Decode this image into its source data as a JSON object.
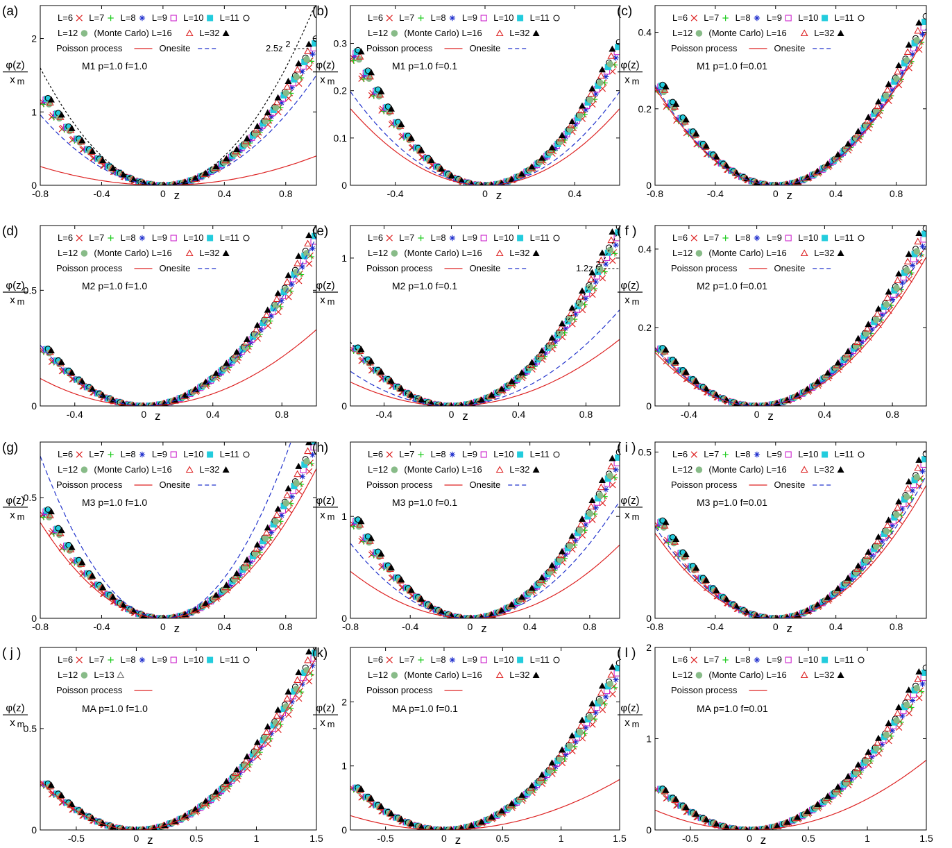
{
  "figure": {
    "ylabel_num": "φ(z)",
    "ylabel_den": "x",
    "ylabel_sub": "m",
    "xlabel": "z",
    "colors": {
      "L6": "#dd2222",
      "L7": "#dd2222",
      "L8": "#22cc22",
      "L9": "#1a2acc",
      "L10": "#cc22cc",
      "L11": "#22ccdd",
      "L12": "#000000",
      "MC": "#88bb88",
      "L16": "#dd2222",
      "L32": "#000000",
      "L13": "#777777",
      "poisson": "#dd2222",
      "onesite": "#2233cc",
      "fit": "#000000"
    }
  },
  "chart_data": [
    {
      "panel": "(a)",
      "type": "scatter",
      "annotation": "M1 p=1.0 f=1.0",
      "legend": [
        "L=6",
        "L=7",
        "L=8",
        "L=9",
        "L=10",
        "L=11",
        "L=12",
        "(Monte Carlo) L=16",
        "L=32",
        "Poisson process",
        "Onesite",
        "2.5z²"
      ],
      "xlim": [
        -0.8,
        1.0
      ],
      "ylim": [
        0,
        2.45
      ],
      "xticks": [
        "-0.8",
        "-0.4",
        "0",
        "0.4",
        "0.8"
      ],
      "yticks": [
        "0",
        "1",
        "2"
      ],
      "data_coef": 1.9,
      "poisson_coef": 0.4,
      "onesite_coef": 1.5,
      "fit_coef": 2.5,
      "fit_label": "2.5z"
    },
    {
      "panel": "(b)",
      "type": "scatter",
      "annotation": "M1 p=1.0 f=0.1",
      "legend": [
        "L=6",
        "L=7",
        "L=8",
        "L=9",
        "L=10",
        "L=11",
        "L=12",
        "(Monte Carlo) L=16",
        "L=32",
        "Poisson process",
        "Onesite"
      ],
      "xlim": [
        -0.6,
        0.6
      ],
      "ylim": [
        0,
        0.38
      ],
      "xticks": [
        "-0.4",
        "0",
        "0.4"
      ],
      "yticks": [
        "0",
        "0.1",
        "0.2",
        "0.3"
      ],
      "data_coef": 0.8,
      "poisson_coef": 0.45,
      "onesite_coef": 0.55
    },
    {
      "panel": "(c)",
      "type": "scatter",
      "annotation": "M1 p=1.0 f=0.01",
      "legend": [
        "L=6",
        "L=7",
        "L=8",
        "L=9",
        "L=10",
        "L=11",
        "L=12",
        "(Monte Carlo) L=16",
        "L=32",
        "Poisson process",
        "Onesite"
      ],
      "xlim": [
        -0.8,
        1.0
      ],
      "ylim": [
        0,
        0.47
      ],
      "xticks": [
        "-0.8",
        "-0.4",
        "0",
        "0.4",
        "0.8"
      ],
      "yticks": [
        "0",
        "0.2",
        "0.4"
      ],
      "data_coef": 0.42,
      "poisson_coef": 0.4,
      "onesite_coef": 0.41
    },
    {
      "panel": "(d)",
      "type": "scatter",
      "annotation": "M2 p=1.0 f=1.0",
      "legend": [
        "L=6",
        "L=7",
        "L=8",
        "L=9",
        "L=10",
        "L=11",
        "L=12",
        "(Monte Carlo) L=16",
        "L=32",
        "Poisson process",
        "Onesite"
      ],
      "xlim": [
        -0.6,
        1.0
      ],
      "ylim": [
        0,
        0.78
      ],
      "xticks": [
        "-0.4",
        "0",
        "0.4",
        "0.8"
      ],
      "yticks": [
        "0",
        "0.5"
      ],
      "data_coef": 0.72,
      "poisson_coef": 0.33,
      "onesite_coef": 0.73
    },
    {
      "panel": "(e)",
      "type": "scatter",
      "annotation": "M2 p=1.0 f=0.1",
      "legend": [
        "L=6",
        "L=7",
        "L=8",
        "L=9",
        "L=10",
        "L=11",
        "L=12",
        "(Monte Carlo) L=16",
        "L=32",
        "Poisson process",
        "Onesite",
        "1.2z²"
      ],
      "xlim": [
        -0.6,
        1.0
      ],
      "ylim": [
        0,
        1.22
      ],
      "xticks": [
        "-0.4",
        "0",
        "0.4",
        "0.8"
      ],
      "yticks": [
        "0",
        "1"
      ],
      "data_coef": 1.15,
      "poisson_coef": 0.45,
      "onesite_coef": 0.65,
      "fit_coef": 1.2,
      "fit_label": "1.2z"
    },
    {
      "panel": "( f )",
      "type": "scatter",
      "annotation": "M2 p=1.0 f=0.01",
      "legend": [
        "L=6",
        "L=7",
        "L=8",
        "L=9",
        "L=10",
        "L=11",
        "L=12",
        "(Monte Carlo) L=16",
        "L=32",
        "Poisson process",
        "Onesite"
      ],
      "xlim": [
        -0.6,
        1.0
      ],
      "ylim": [
        0,
        0.46
      ],
      "xticks": [
        "-0.4",
        "0",
        "0.4",
        "0.8"
      ],
      "yticks": [
        "0",
        "0.2",
        "0.4"
      ],
      "data_coef": 0.43,
      "poisson_coef": 0.38,
      "onesite_coef": 0.41
    },
    {
      "panel": "(g)",
      "type": "scatter",
      "annotation": "M3 p=1.0 f=1.0",
      "legend": [
        "L=6",
        "L=7",
        "L=8",
        "L=9",
        "L=10",
        "L=11",
        "L=12",
        "(Monte Carlo) L=16",
        "L=32",
        "Poisson process",
        "Onesite"
      ],
      "xlim": [
        -0.8,
        1.0
      ],
      "ylim": [
        0,
        0.73
      ],
      "xticks": [
        "-0.8",
        "-0.4",
        "0",
        "0.4",
        "0.8"
      ],
      "yticks": [
        "0",
        "0.5"
      ],
      "data_coef": 0.72,
      "poisson_coef": 0.62,
      "onesite_coef": 1.05
    },
    {
      "panel": "(h)",
      "type": "scatter",
      "annotation": "M3 p=1.0 f=0.1",
      "legend": [
        "L=6",
        "L=7",
        "L=8",
        "L=9",
        "L=10",
        "L=11",
        "L=12",
        "(Monte Carlo) L=16",
        "L=32",
        "Poisson process",
        "Onesite"
      ],
      "xlim": [
        -0.8,
        1.0
      ],
      "ylim": [
        0,
        1.73
      ],
      "xticks": [
        "-0.8",
        "-0.4",
        "0",
        "0.4",
        "0.8"
      ],
      "yticks": [
        "0",
        "1"
      ],
      "data_coef": 1.55,
      "poisson_coef": 0.72,
      "onesite_coef": 1.15
    },
    {
      "panel": "( i )",
      "type": "scatter",
      "annotation": "M3 p=1.0 f=0.01",
      "legend": [
        "L=6",
        "L=7",
        "L=8",
        "L=9",
        "L=10",
        "L=11",
        "L=12",
        "(Monte Carlo) L=16",
        "L=32",
        "Poisson process",
        "Onesite"
      ],
      "xlim": [
        -0.8,
        1.0
      ],
      "ylim": [
        0,
        0.53
      ],
      "xticks": [
        "-0.8",
        "-0.4",
        "0",
        "0.4",
        "0.8"
      ],
      "yticks": [
        "0",
        "0.5"
      ],
      "data_coef": 0.47,
      "poisson_coef": 0.4,
      "onesite_coef": 0.43
    },
    {
      "panel": "( j )",
      "type": "scatter",
      "annotation": "MA p=1.0 f=1.0",
      "legend": [
        "L=6",
        "L=7",
        "L=8",
        "L=9",
        "L=10",
        "L=11",
        "L=12",
        "L=13",
        "Poisson process"
      ],
      "xlim": [
        -0.8,
        1.5
      ],
      "ylim": [
        0,
        0.9
      ],
      "xticks": [
        "-0.5",
        "0",
        "0.5",
        "1",
        "1.5"
      ],
      "yticks": [
        "0",
        "0.5"
      ],
      "data_coef": 0.38,
      "poisson_coef": 0.38
    },
    {
      "panel": "(k)",
      "type": "scatter",
      "annotation": "MA p=1.0 f=0.1",
      "legend": [
        "L=6",
        "L=7",
        "L=8",
        "L=9",
        "L=10",
        "L=11",
        "L=12",
        "(Monte Carlo) L=16",
        "L=32",
        "Poisson process"
      ],
      "xlim": [
        -0.8,
        1.5
      ],
      "ylim": [
        0,
        2.85
      ],
      "xticks": [
        "-0.5",
        "0",
        "0.5",
        "1",
        "1.5"
      ],
      "yticks": [
        "0",
        "1",
        "2"
      ],
      "data_coef": 1.1,
      "poisson_coef": 0.35
    },
    {
      "panel": "( l )",
      "type": "scatter",
      "annotation": "MA p=1.0 f=0.01",
      "legend": [
        "L=6",
        "L=7",
        "L=8",
        "L=9",
        "L=10",
        "L=11",
        "L=12",
        "(Monte Carlo) L=16",
        "L=32",
        "Poisson process"
      ],
      "xlim": [
        -0.8,
        1.5
      ],
      "ylim": [
        0,
        2.0
      ],
      "xticks": [
        "-0.5",
        "0",
        "0.5",
        "1",
        "1.5"
      ],
      "yticks": [
        "0",
        "1",
        "2"
      ],
      "data_coef": 0.75,
      "poisson_coef": 0.34
    }
  ]
}
